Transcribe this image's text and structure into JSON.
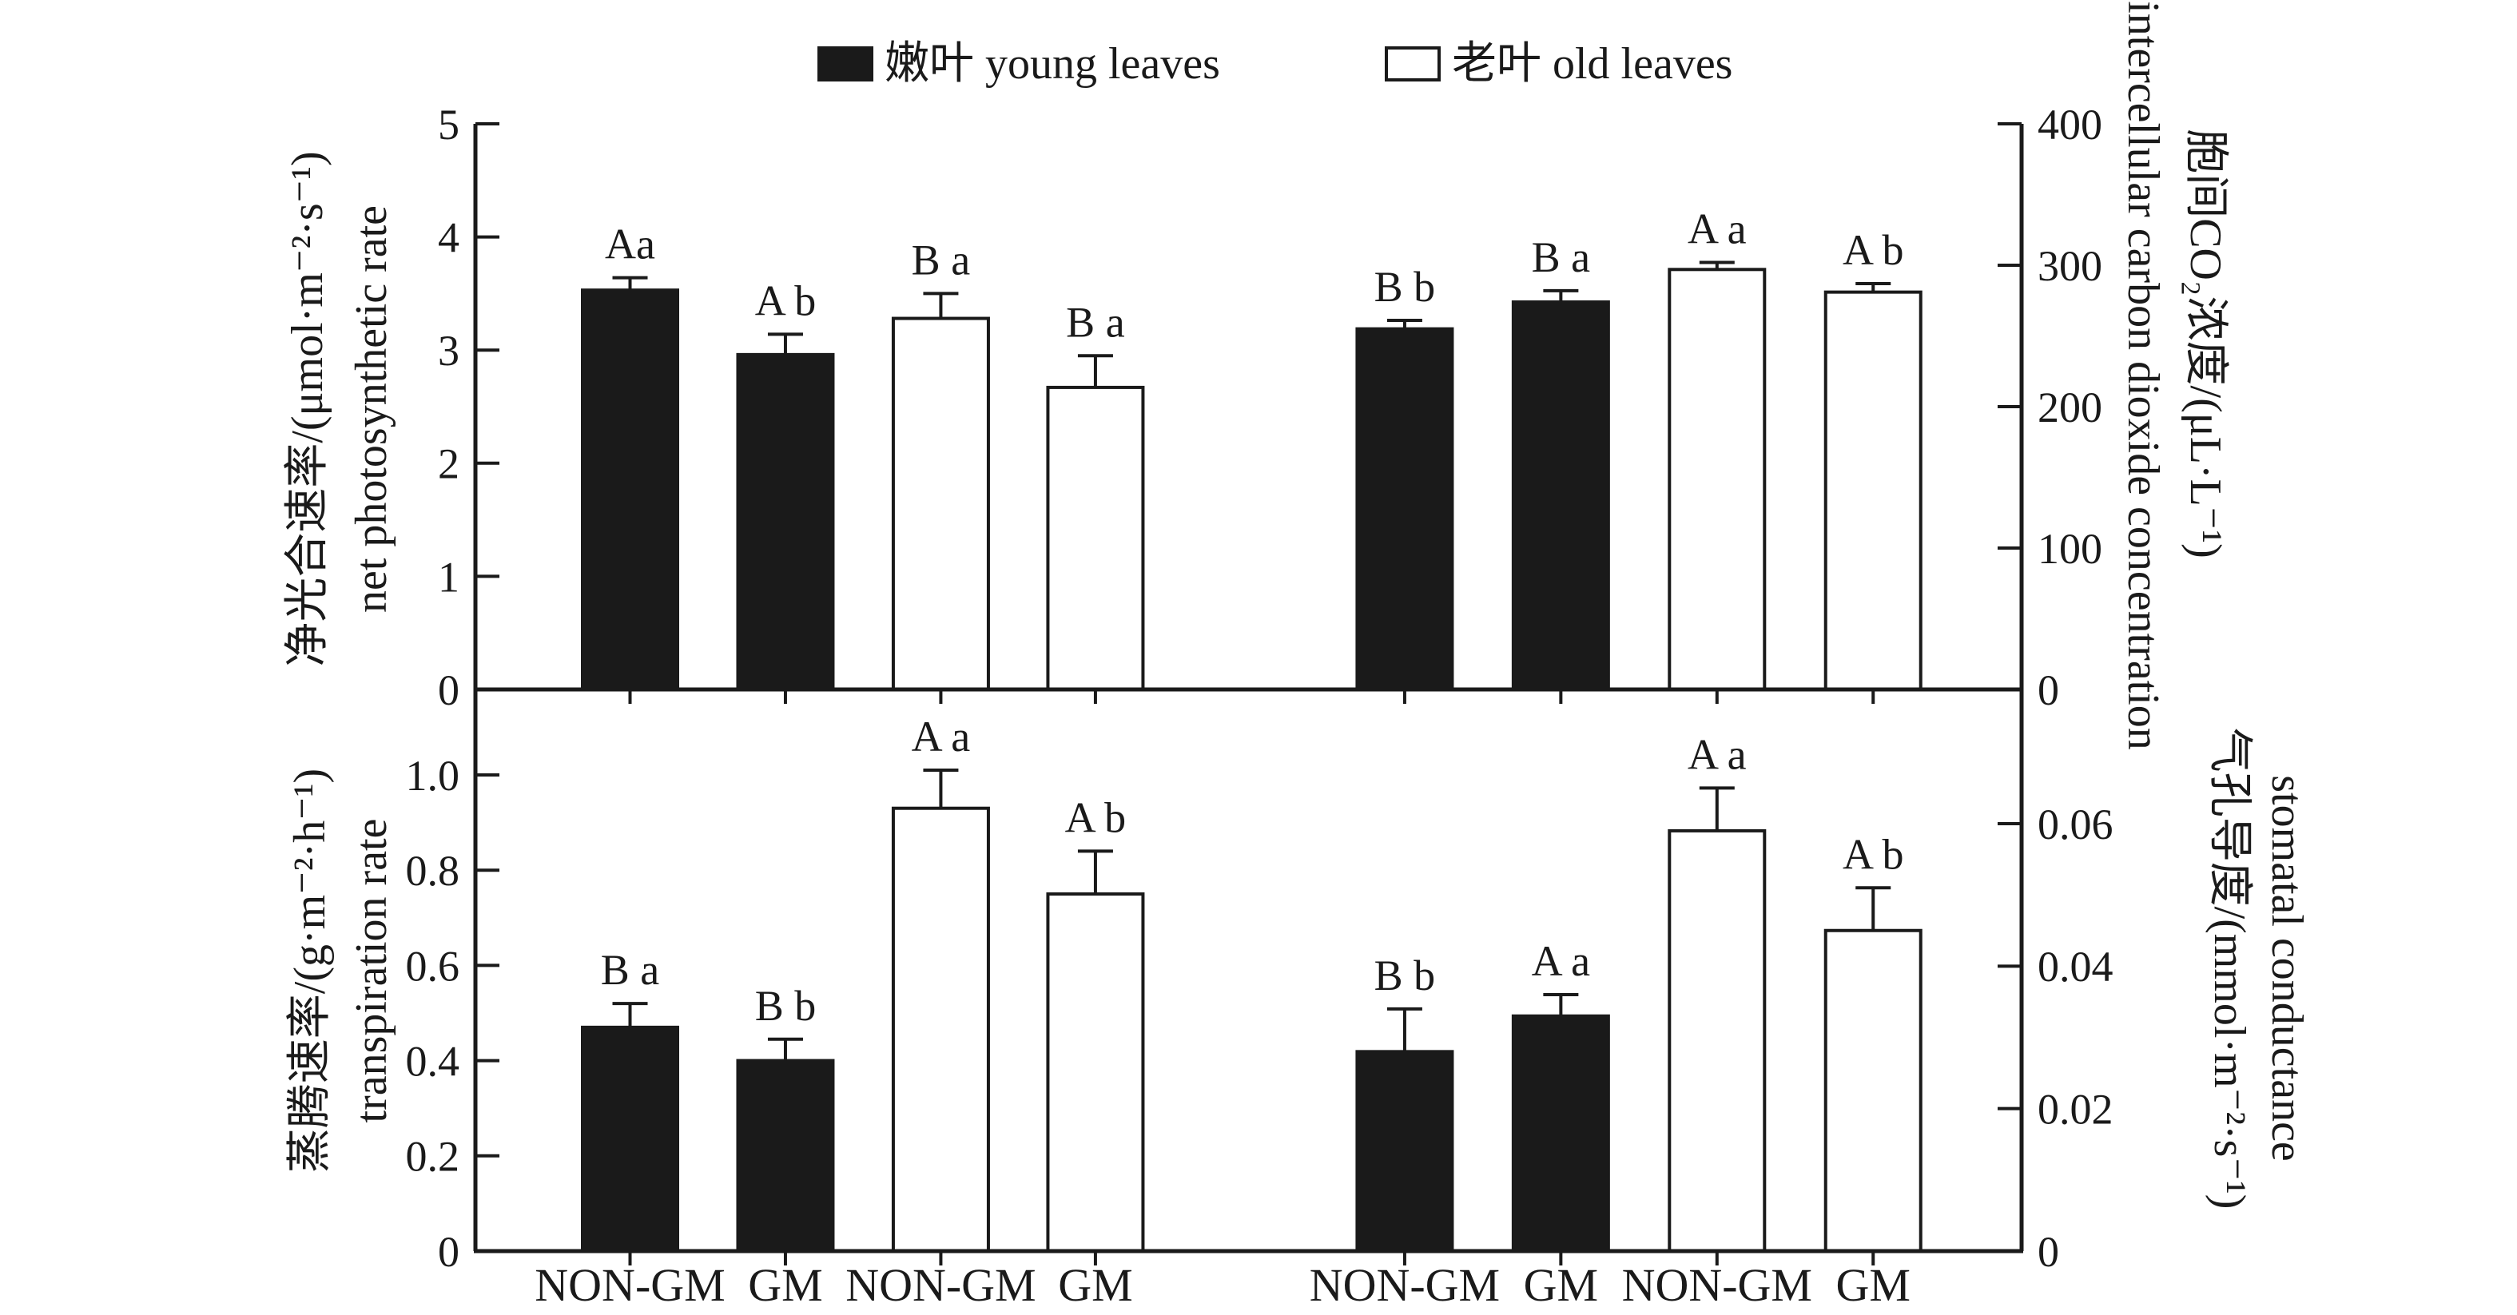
{
  "chart_data": {
    "type": "bar",
    "layout_note": "two stacked dual-axis panels, grouped bars with error bars, legend top center, grid off",
    "legend": [
      {
        "label": "嫩叶 young leaves",
        "swatch": "black-filled-square",
        "color": "#1a1a1a"
      },
      {
        "label": "老叶 old leaves",
        "swatch": "white-open-square",
        "color": "#ffffff"
      }
    ],
    "x_categories": [
      "NON-GM",
      "GM",
      "NON-GM",
      "GM",
      "NON-GM",
      "GM",
      "NON-GM",
      "GM"
    ],
    "series_names": [
      "嫩叶 young leaves",
      "老叶 old leaves"
    ],
    "bar_border_color": "#1a1a1a",
    "panels": [
      {
        "id": "net-photosynthetic-rate",
        "position": "top-left",
        "title_zh": "净光合速率/(μmol·m⁻²·s⁻¹)",
        "title_en": "net photosynthetic rate",
        "axis_side": "left",
        "ylim": [
          0,
          5
        ],
        "yticks": [
          "0",
          "1",
          "2",
          "3",
          "4",
          "5"
        ],
        "bars": [
          {
            "series": "young leaves",
            "category": "NON-GM",
            "value": 3.53,
            "error": 0.11,
            "label": "Aa"
          },
          {
            "series": "young leaves",
            "category": "GM",
            "value": 2.96,
            "error": 0.18,
            "label": "A b"
          },
          {
            "series": "old leaves",
            "category": "NON-GM",
            "value": 3.28,
            "error": 0.22,
            "label": "B a"
          },
          {
            "series": "old leaves",
            "category": "GM",
            "value": 2.67,
            "error": 0.28,
            "label": "B a"
          }
        ]
      },
      {
        "id": "intercellular-co2-concentration",
        "position": "top-right",
        "title_zh": "胞间CO₂浓度/(μL·L⁻¹)",
        "title_en": "intercellular carbon dioxide concentration",
        "axis_side": "right",
        "ylim": [
          0,
          400
        ],
        "yticks": [
          "0",
          "100",
          "200",
          "300",
          "400"
        ],
        "bars": [
          {
            "series": "young leaves",
            "category": "NON-GM",
            "value": 255,
            "error": 6,
            "label": "B b"
          },
          {
            "series": "young leaves",
            "category": "GM",
            "value": 274,
            "error": 8,
            "label": "B a"
          },
          {
            "series": "old leaves",
            "category": "NON-GM",
            "value": 297,
            "error": 5,
            "label": "A a"
          },
          {
            "series": "old leaves",
            "category": "GM",
            "value": 281,
            "error": 6,
            "label": "A b"
          }
        ]
      },
      {
        "id": "transpiration-rate",
        "position": "bottom-left",
        "title_zh": "蒸腾速率/(g·m⁻²·h⁻¹)",
        "title_en": "transpiration rate",
        "axis_side": "left",
        "ylim": [
          0,
          1.0
        ],
        "yticks": [
          "0",
          "0.2",
          "0.4",
          "0.6",
          "0.8",
          "1.0"
        ],
        "bars": [
          {
            "series": "young leaves",
            "category": "NON-GM",
            "value": 0.47,
            "error": 0.05,
            "label": "B a"
          },
          {
            "series": "young leaves",
            "category": "GM",
            "value": 0.4,
            "error": 0.045,
            "label": "B b"
          },
          {
            "series": "old leaves",
            "category": "NON-GM",
            "value": 0.93,
            "error": 0.08,
            "label": "A a"
          },
          {
            "series": "old leaves",
            "category": "GM",
            "value": 0.75,
            "error": 0.09,
            "label": "A b"
          }
        ]
      },
      {
        "id": "stomatal-conductance",
        "position": "bottom-right",
        "title_zh": "气孔导度/(mmol·m⁻²·s⁻¹)",
        "title_en": "stomatal conductance",
        "axis_side": "right",
        "ylim": [
          0,
          0.06
        ],
        "yticks": [
          "0",
          "0.02",
          "0.04",
          "0.06"
        ],
        "bars": [
          {
            "series": "young leaves",
            "category": "NON-GM",
            "value": 0.028,
            "error": 0.006,
            "label": "B b"
          },
          {
            "series": "young leaves",
            "category": "GM",
            "value": 0.033,
            "error": 0.003,
            "label": "A a"
          },
          {
            "series": "old leaves",
            "category": "NON-GM",
            "value": 0.059,
            "error": 0.006,
            "label": "A a"
          },
          {
            "series": "old leaves",
            "category": "GM",
            "value": 0.045,
            "error": 0.006,
            "label": "A b"
          }
        ]
      }
    ]
  }
}
